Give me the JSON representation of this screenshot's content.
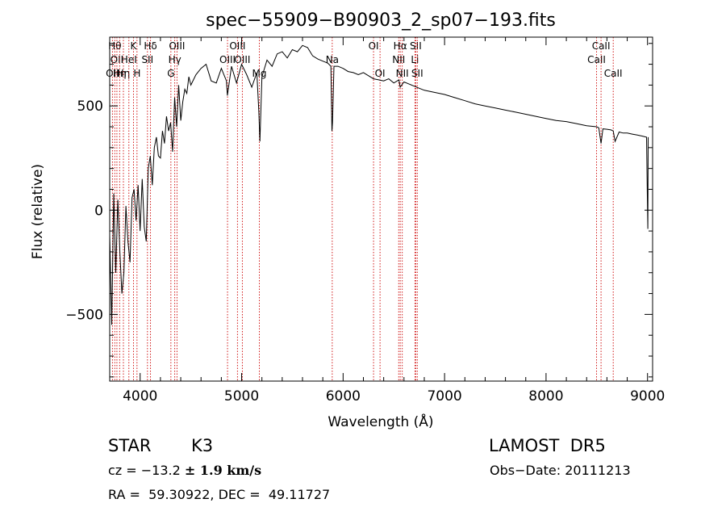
{
  "chart_data": {
    "type": "line",
    "title": "spec−55909−B90903_2_sp07−193.fits",
    "xlabel": "Wavelength (Å)",
    "ylabel": "Flux (relative)",
    "xlim": [
      3700,
      9050
    ],
    "ylim": [
      -820,
      830
    ],
    "x_ticks": [
      4000,
      5000,
      6000,
      7000,
      8000,
      9000
    ],
    "y_ticks": [
      -500,
      0,
      500
    ],
    "y_tick_labels": [
      "−500",
      "0",
      "500"
    ],
    "grid": false,
    "series": [
      {
        "values_x": [
          3700,
          3720,
          3740,
          3760,
          3780,
          3800,
          3820,
          3840,
          3860,
          3880,
          3900,
          3920,
          3940,
          3960,
          3980,
          4000,
          4020,
          4040,
          4060,
          4080,
          4100,
          4120,
          4140,
          4160,
          4180,
          4200,
          4220,
          4240,
          4260,
          4280,
          4300,
          4320,
          4340,
          4360,
          4380,
          4400,
          4420,
          4440,
          4460,
          4480,
          4500,
          4550,
          4600,
          4650,
          4700,
          4750,
          4800,
          4850,
          4860,
          4900,
          4950,
          5000,
          5050,
          5100,
          5150,
          5170,
          5180,
          5200,
          5250,
          5300,
          5350,
          5400,
          5450,
          5500,
          5550,
          5600,
          5650,
          5700,
          5750,
          5800,
          5850,
          5880,
          5890,
          5896,
          5910,
          5950,
          6000,
          6050,
          6100,
          6150,
          6200,
          6250,
          6300,
          6350,
          6400,
          6450,
          6500,
          6550,
          6563,
          6600,
          6650,
          6700,
          6750,
          6800,
          6900,
          7000,
          7100,
          7200,
          7300,
          7400,
          7500,
          7600,
          7700,
          7800,
          7900,
          8000,
          8100,
          8200,
          8300,
          8400,
          8498,
          8520,
          8542,
          8560,
          8600,
          8640,
          8662,
          8680,
          8720,
          8760,
          8800,
          8850,
          8900,
          8950,
          8990,
          9000,
          9003,
          9006
        ],
        "values_y": [
          -120,
          -550,
          80,
          -300,
          50,
          -200,
          -400,
          -300,
          20,
          -150,
          -250,
          60,
          100,
          -50,
          120,
          -100,
          150,
          -80,
          -150,
          200,
          260,
          120,
          300,
          350,
          260,
          250,
          380,
          320,
          450,
          380,
          420,
          280,
          540,
          400,
          600,
          430,
          520,
          580,
          560,
          640,
          600,
          650,
          680,
          700,
          620,
          610,
          680,
          620,
          550,
          690,
          610,
          700,
          650,
          590,
          660,
          470,
          330,
          640,
          720,
          690,
          750,
          760,
          730,
          770,
          760,
          790,
          780,
          740,
          725,
          715,
          705,
          690,
          380,
          420,
          690,
          690,
          680,
          665,
          660,
          650,
          660,
          645,
          630,
          625,
          620,
          630,
          610,
          625,
          590,
          615,
          605,
          595,
          585,
          575,
          565,
          555,
          540,
          525,
          510,
          500,
          490,
          480,
          470,
          460,
          450,
          440,
          430,
          425,
          415,
          405,
          400,
          395,
          320,
          390,
          388,
          385,
          380,
          330,
          375,
          370,
          370,
          365,
          360,
          355,
          350,
          10,
          -90,
          350
        ]
      }
    ],
    "lines": [
      {
        "x": 3727,
        "label": "OII",
        "row": 3
      },
      {
        "x": 3750,
        "label": "Hθ",
        "row": 1
      },
      {
        "x": 3771,
        "label": "OII",
        "row": 2
      },
      {
        "x": 3798,
        "label": "Hη",
        "row": 3
      },
      {
        "x": 3835,
        "label": "Hη",
        "row": 3
      },
      {
        "x": 3889,
        "label": "HeI",
        "row": 2
      },
      {
        "x": 3934,
        "label": "K",
        "row": 1
      },
      {
        "x": 3969,
        "label": "H",
        "row": 3
      },
      {
        "x": 4072,
        "label": "SII",
        "row": 2
      },
      {
        "x": 4102,
        "label": "Hδ",
        "row": 1
      },
      {
        "x": 4303,
        "label": "G",
        "row": 3
      },
      {
        "x": 4341,
        "label": "Hγ",
        "row": 2
      },
      {
        "x": 4363,
        "label": "OIII",
        "row": 1
      },
      {
        "x": 4861,
        "label": "OIII",
        "row": 2
      },
      {
        "x": 4959,
        "label": "OIII",
        "row": 1
      },
      {
        "x": 5007,
        "label": "OIII",
        "row": 2
      },
      {
        "x": 5175,
        "label": "Mg",
        "row": 3
      },
      {
        "x": 5893,
        "label": "Na",
        "row": 2
      },
      {
        "x": 6300,
        "label": "OI",
        "row": 1
      },
      {
        "x": 6364,
        "label": "OI",
        "row": 3
      },
      {
        "x": 6548,
        "label": "NII",
        "row": 2
      },
      {
        "x": 6563,
        "label": "Hα",
        "row": 1
      },
      {
        "x": 6583,
        "label": "NII",
        "row": 3
      },
      {
        "x": 6708,
        "label": "Li",
        "row": 2
      },
      {
        "x": 6716,
        "label": "SII",
        "row": 1
      },
      {
        "x": 6731,
        "label": "SII",
        "row": 3
      },
      {
        "x": 8498,
        "label": "CaII",
        "row": 2
      },
      {
        "x": 8542,
        "label": "CaII",
        "row": 1
      },
      {
        "x": 8662,
        "label": "CaII",
        "row": 3
      }
    ]
  },
  "info": {
    "class_label": "STAR",
    "subclass": "K3",
    "survey": "LAMOST  DR5",
    "cz_prefix": "cz = −13.2 ",
    "cz_uncert": "± 1.9 km/s",
    "obs_date": "Obs−Date: 20111213",
    "radec": "RA =  59.30922, DEC =  49.11727"
  },
  "colors": {
    "spectrum": "#000000",
    "lines": "#cc0000",
    "background": "#ffffff"
  }
}
